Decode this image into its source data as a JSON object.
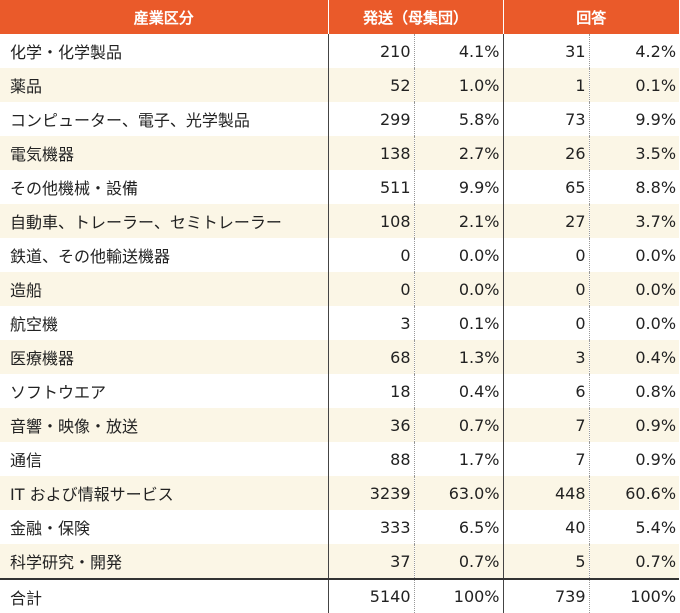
{
  "header": {
    "category": "産業区分",
    "sent": "発送（母集団）",
    "response": "回答"
  },
  "rows": [
    {
      "name": "化学・化学製品",
      "sent_count": "210",
      "sent_pct": "4.1%",
      "resp_count": "31",
      "resp_pct": "4.2%"
    },
    {
      "name": "薬品",
      "sent_count": "52",
      "sent_pct": "1.0%",
      "resp_count": "1",
      "resp_pct": "0.1%"
    },
    {
      "name": "コンピューター、電子、光学製品",
      "sent_count": "299",
      "sent_pct": "5.8%",
      "resp_count": "73",
      "resp_pct": "9.9%"
    },
    {
      "name": "電気機器",
      "sent_count": "138",
      "sent_pct": "2.7%",
      "resp_count": "26",
      "resp_pct": "3.5%"
    },
    {
      "name": "その他機械・設備",
      "sent_count": "511",
      "sent_pct": "9.9%",
      "resp_count": "65",
      "resp_pct": "8.8%"
    },
    {
      "name": "自動車、トレーラー、セミトレーラー",
      "sent_count": "108",
      "sent_pct": "2.1%",
      "resp_count": "27",
      "resp_pct": "3.7%"
    },
    {
      "name": "鉄道、その他輸送機器",
      "sent_count": "0",
      "sent_pct": "0.0%",
      "resp_count": "0",
      "resp_pct": "0.0%"
    },
    {
      "name": "造船",
      "sent_count": "0",
      "sent_pct": "0.0%",
      "resp_count": "0",
      "resp_pct": "0.0%"
    },
    {
      "name": "航空機",
      "sent_count": "3",
      "sent_pct": "0.1%",
      "resp_count": "0",
      "resp_pct": "0.0%"
    },
    {
      "name": "医療機器",
      "sent_count": "68",
      "sent_pct": "1.3%",
      "resp_count": "3",
      "resp_pct": "0.4%"
    },
    {
      "name": "ソフトウエア",
      "sent_count": "18",
      "sent_pct": "0.4%",
      "resp_count": "6",
      "resp_pct": "0.8%"
    },
    {
      "name": "音響・映像・放送",
      "sent_count": "36",
      "sent_pct": "0.7%",
      "resp_count": "7",
      "resp_pct": "0.9%"
    },
    {
      "name": "通信",
      "sent_count": "88",
      "sent_pct": "1.7%",
      "resp_count": "7",
      "resp_pct": "0.9%"
    },
    {
      "name": "IT および情報サービス",
      "sent_count": "3239",
      "sent_pct": "63.0%",
      "resp_count": "448",
      "resp_pct": "60.6%"
    },
    {
      "name": "金融・保険",
      "sent_count": "333",
      "sent_pct": "6.5%",
      "resp_count": "40",
      "resp_pct": "5.4%"
    },
    {
      "name": "科学研究・開発",
      "sent_count": "37",
      "sent_pct": "0.7%",
      "resp_count": "5",
      "resp_pct": "0.7%"
    }
  ],
  "total": {
    "name": "合計",
    "sent_count": "5140",
    "sent_pct": "100%",
    "resp_count": "739",
    "resp_pct": "100%"
  },
  "colors": {
    "header_bg": "#ea5a2a",
    "stripe_bg": "#fbf6e6"
  }
}
